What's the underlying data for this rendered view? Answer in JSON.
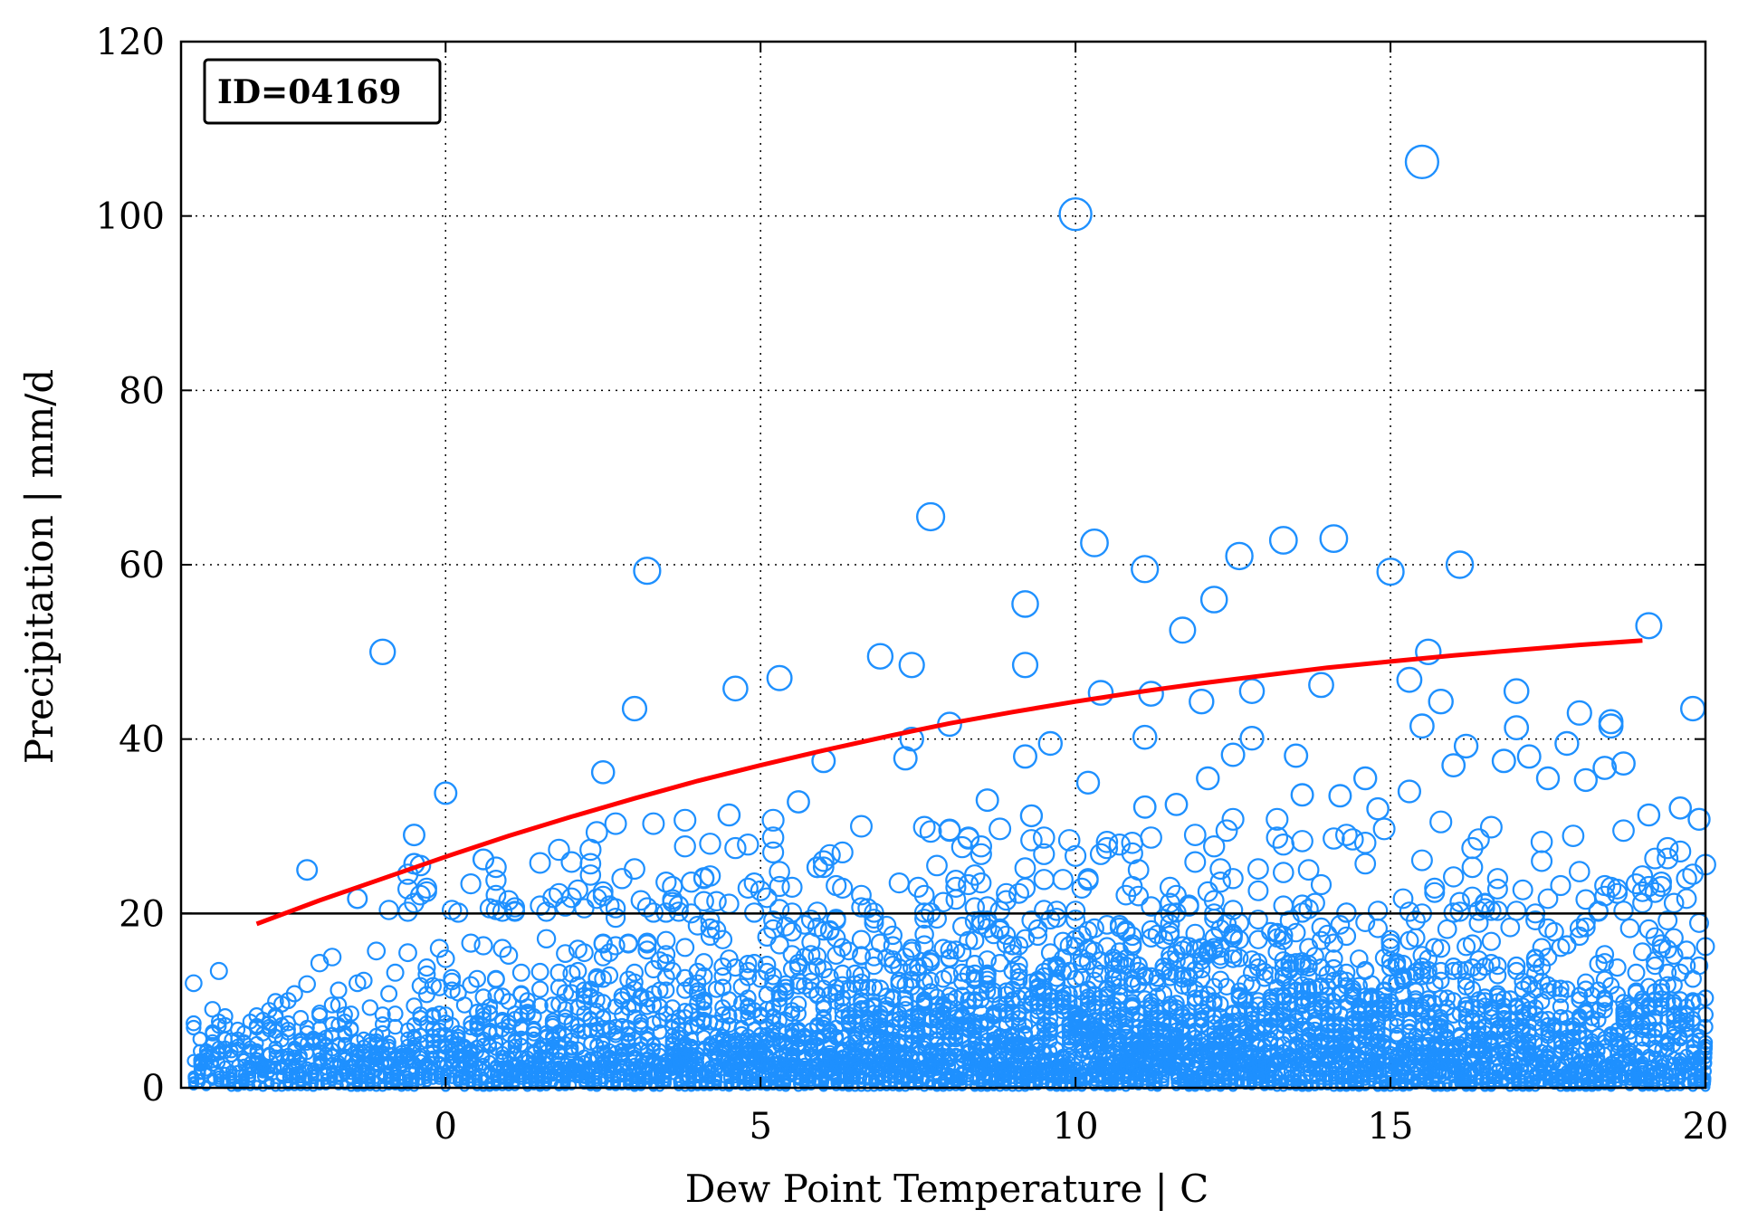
{
  "chart_data": {
    "type": "scatter",
    "title": "",
    "xlabel": "Dew Point Temperature | C",
    "ylabel": "Precipitation | mm/d",
    "xlim": [
      -4.2,
      20
    ],
    "ylim": [
      0,
      120
    ],
    "x_ticks": [
      0,
      5,
      10,
      15,
      20
    ],
    "y_ticks": [
      0,
      20,
      40,
      60,
      80,
      100,
      120
    ],
    "grid": true,
    "grid_style": "dotted",
    "annotation": "ID=04169",
    "threshold_line": {
      "y": 20,
      "color": "#000000"
    },
    "colors": {
      "points": "#1e90ff",
      "fit": "#ff0000",
      "axes": "#000000"
    },
    "series": [
      {
        "kind": "scatter-outlier-points",
        "points": [
          [
            -1.0,
            50.0
          ],
          [
            3.2,
            59.3
          ],
          [
            3.0,
            43.5
          ],
          [
            2.5,
            36.2
          ],
          [
            -0.5,
            29.0
          ],
          [
            -0.5,
            25.7
          ],
          [
            0.0,
            33.8
          ],
          [
            -2.2,
            25.0
          ],
          [
            -1.4,
            21.7
          ],
          [
            0.6,
            26.2
          ],
          [
            4.6,
            45.8
          ],
          [
            5.3,
            47.0
          ],
          [
            6.9,
            49.5
          ],
          [
            7.4,
            48.5
          ],
          [
            7.7,
            65.5
          ],
          [
            7.4,
            40.0
          ],
          [
            8.0,
            41.7
          ],
          [
            7.3,
            37.8
          ],
          [
            6.0,
            37.5
          ],
          [
            9.2,
            55.5
          ],
          [
            9.2,
            48.5
          ],
          [
            9.2,
            38.0
          ],
          [
            9.6,
            39.5
          ],
          [
            10.0,
            100.2
          ],
          [
            10.3,
            62.5
          ],
          [
            10.4,
            45.3
          ],
          [
            11.1,
            59.5
          ],
          [
            11.2,
            45.2
          ],
          [
            11.1,
            40.2
          ],
          [
            11.7,
            52.5
          ],
          [
            12.0,
            44.3
          ],
          [
            12.2,
            56.0
          ],
          [
            12.6,
            61.0
          ],
          [
            12.8,
            45.5
          ],
          [
            12.8,
            40.1
          ],
          [
            13.3,
            62.8
          ],
          [
            13.5,
            38.1
          ],
          [
            13.9,
            46.2
          ],
          [
            14.1,
            63.0
          ],
          [
            15.0,
            59.2
          ],
          [
            15.5,
            106.2
          ],
          [
            15.6,
            50.0
          ],
          [
            15.3,
            46.8
          ],
          [
            15.8,
            44.3
          ],
          [
            16.1,
            60.0
          ],
          [
            15.5,
            41.5
          ],
          [
            16.0,
            37.0
          ],
          [
            16.2,
            39.2
          ],
          [
            17.0,
            45.5
          ],
          [
            17.0,
            41.3
          ],
          [
            17.2,
            38.0
          ],
          [
            17.5,
            35.5
          ],
          [
            18.0,
            43.0
          ],
          [
            18.5,
            42.0
          ],
          [
            18.5,
            41.5
          ],
          [
            18.7,
            37.2
          ],
          [
            19.1,
            53.0
          ],
          [
            19.8,
            43.5
          ],
          [
            19.1,
            31.3
          ],
          [
            19.6,
            32.1
          ],
          [
            19.9,
            30.8
          ],
          [
            14.6,
            35.5
          ],
          [
            14.8,
            32.0
          ],
          [
            15.3,
            34.0
          ],
          [
            12.1,
            35.5
          ],
          [
            12.5,
            38.2
          ],
          [
            13.6,
            33.6
          ],
          [
            14.2,
            33.5
          ],
          [
            16.8,
            37.5
          ],
          [
            18.4,
            36.7
          ],
          [
            18.1,
            35.3
          ],
          [
            17.8,
            39.5
          ],
          [
            9.3,
            31.2
          ],
          [
            10.2,
            35.0
          ],
          [
            11.1,
            32.2
          ],
          [
            11.6,
            32.5
          ],
          [
            5.6,
            32.8
          ],
          [
            8.6,
            33.0
          ],
          [
            4.5,
            31.3
          ]
        ]
      },
      {
        "kind": "fit-curve",
        "points": [
          [
            -3.0,
            18.8
          ],
          [
            -2.0,
            21.5
          ],
          [
            -1.0,
            24.0
          ],
          [
            0.0,
            26.5
          ],
          [
            1.0,
            28.9
          ],
          [
            2.0,
            31.1
          ],
          [
            3.0,
            33.2
          ],
          [
            4.0,
            35.2
          ],
          [
            5.0,
            37.0
          ],
          [
            6.0,
            38.7
          ],
          [
            7.0,
            40.3
          ],
          [
            8.0,
            41.8
          ],
          [
            9.0,
            43.1
          ],
          [
            10.0,
            44.3
          ],
          [
            11.0,
            45.4
          ],
          [
            12.0,
            46.4
          ],
          [
            13.0,
            47.3
          ],
          [
            14.0,
            48.2
          ],
          [
            15.0,
            48.9
          ],
          [
            16.0,
            49.6
          ],
          [
            17.0,
            50.2
          ],
          [
            18.0,
            50.8
          ],
          [
            19.0,
            51.3
          ]
        ]
      }
    ]
  }
}
